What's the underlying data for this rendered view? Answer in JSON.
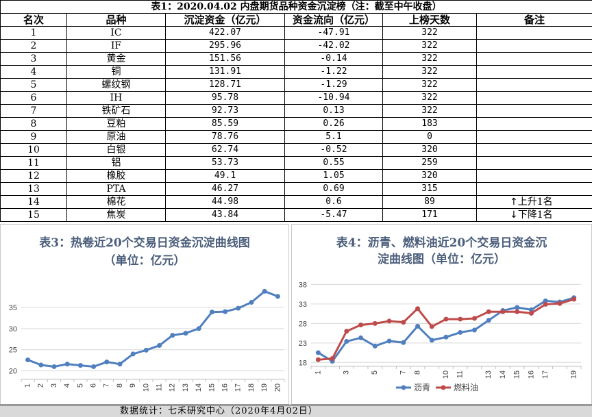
{
  "table": {
    "title": "表1：2020.04.02 内盘期货品种资金沉淀榜（注：截至中午收盘）",
    "headers": [
      "名次",
      "品种",
      "沉淀资金（亿元）",
      "资金流向（亿元）",
      "上榜天数",
      "备注"
    ],
    "rows": [
      {
        "rank": "1",
        "name": "IC",
        "funds": "422.07",
        "flow": "-47.91",
        "days": "322",
        "note": ""
      },
      {
        "rank": "2",
        "name": "IF",
        "funds": "295.96",
        "flow": "-42.02",
        "days": "322",
        "note": ""
      },
      {
        "rank": "3",
        "name": "黄金",
        "funds": "151.56",
        "flow": "-0.14",
        "days": "322",
        "note": ""
      },
      {
        "rank": "4",
        "name": "铜",
        "funds": "131.91",
        "flow": "-1.22",
        "days": "322",
        "note": ""
      },
      {
        "rank": "5",
        "name": "螺纹钢",
        "funds": "128.71",
        "flow": "-1.29",
        "days": "322",
        "note": ""
      },
      {
        "rank": "6",
        "name": "IH",
        "funds": "95.78",
        "flow": "-10.94",
        "days": "322",
        "note": ""
      },
      {
        "rank": "7",
        "name": "铁矿石",
        "funds": "92.73",
        "flow": "0.13",
        "days": "322",
        "note": ""
      },
      {
        "rank": "8",
        "name": "豆粕",
        "funds": "85.59",
        "flow": "0.26",
        "days": "183",
        "note": ""
      },
      {
        "rank": "9",
        "name": "原油",
        "funds": "78.76",
        "flow": "5.1",
        "days": "0",
        "note": ""
      },
      {
        "rank": "10",
        "name": "白银",
        "funds": "62.74",
        "flow": "-0.52",
        "days": "320",
        "note": ""
      },
      {
        "rank": "11",
        "name": "铝",
        "funds": "53.73",
        "flow": "0.55",
        "days": "259",
        "note": ""
      },
      {
        "rank": "12",
        "name": "橡胶",
        "funds": "49.1",
        "flow": "1.05",
        "days": "320",
        "note": ""
      },
      {
        "rank": "13",
        "name": "PTA",
        "funds": "46.27",
        "flow": "0.69",
        "days": "315",
        "note": ""
      },
      {
        "rank": "14",
        "name": "棉花",
        "funds": "44.98",
        "flow": "0.6",
        "days": "89",
        "note": "上升1名",
        "arrow": "↑"
      },
      {
        "rank": "15",
        "name": "焦炭",
        "funds": "43.84",
        "flow": "-5.47",
        "days": "171",
        "note": "下降1名",
        "arrow": "↓"
      }
    ]
  },
  "footer": {
    "text": "数据统计：七禾研究中心（2020年4月02日）"
  },
  "chart_data": [
    {
      "type": "line",
      "title": "表3：热卷近20个交易日资金沉淀曲线图",
      "subtitle": "（单位：亿元）",
      "x": [
        1,
        2,
        3,
        4,
        5,
        6,
        7,
        8,
        9,
        10,
        11,
        12,
        13,
        14,
        15,
        16,
        17,
        18,
        19,
        20
      ],
      "series": [
        {
          "values": [
            22.6,
            21.4,
            21.0,
            21.6,
            21.3,
            21.0,
            22.1,
            21.6,
            24.0,
            24.9,
            26.0,
            28.4,
            28.9,
            30.0,
            33.9,
            34.0,
            34.8,
            36.2,
            38.8,
            37.6
          ],
          "color": "#4f7fbf"
        }
      ],
      "ylim": [
        18,
        40
      ],
      "yticks": [
        20,
        25,
        30,
        35
      ],
      "grid": true,
      "xlabel": "",
      "ylabel": ""
    },
    {
      "type": "line",
      "title": "表4：沥青、燃料油近20个交易日资金沉",
      "subtitle": "淀曲线图（单位：亿元）",
      "x": [
        1,
        2,
        3,
        4,
        5,
        6,
        7,
        8,
        9,
        10,
        11,
        12,
        13,
        14,
        15,
        16,
        17,
        18,
        19
      ],
      "xticks": [
        1,
        3,
        5,
        7,
        8,
        10,
        11,
        13,
        14,
        15,
        16,
        17,
        19
      ],
      "series": [
        {
          "name": "沥青",
          "values": [
            20.5,
            18.3,
            23.4,
            24.3,
            22.2,
            23.5,
            23.1,
            27.3,
            23.7,
            24.5,
            25.7,
            26.3,
            28.8,
            31.3,
            32.1,
            31.5,
            33.8,
            33.5,
            34.6
          ],
          "color": "#4f7fbf"
        },
        {
          "name": "燃料油",
          "values": [
            18.7,
            19.0,
            26.0,
            27.6,
            28.0,
            28.6,
            28.3,
            31.8,
            27.2,
            29.1,
            29.1,
            29.3,
            31.0,
            31.0,
            31.0,
            30.6,
            32.9,
            33.1,
            34.2
          ],
          "color": "#bf4a4a"
        }
      ],
      "ylim": [
        17,
        40
      ],
      "yticks": [
        18,
        23,
        28,
        33,
        38
      ],
      "grid": true,
      "legend": "bottom",
      "xlabel": "",
      "ylabel": ""
    }
  ]
}
